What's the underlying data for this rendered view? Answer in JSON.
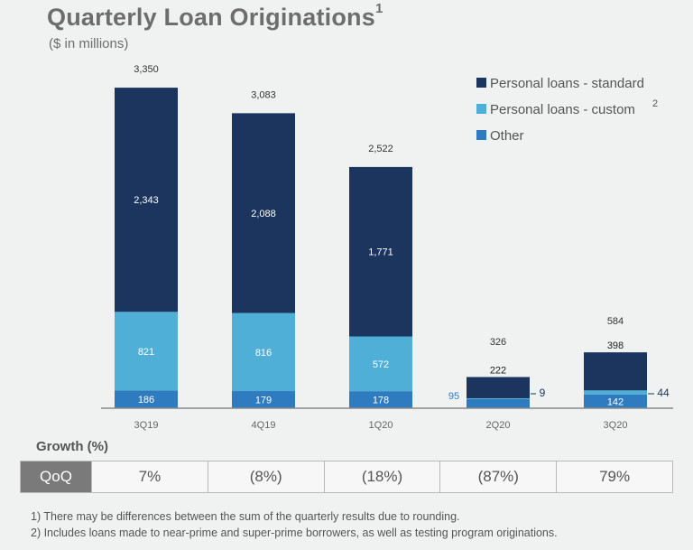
{
  "title": "Quarterly Loan Originations",
  "title_sup": "1",
  "subtitle": "($ in millions)",
  "chart_data": {
    "type": "bar",
    "stacked": true,
    "categories": [
      "3Q19",
      "4Q19",
      "1Q20",
      "2Q20",
      "3Q20"
    ],
    "series": [
      {
        "name": "Personal loans - standard",
        "values": [
          2343,
          2088,
          1771,
          222,
          398
        ],
        "color": "#1b355e"
      },
      {
        "name": "Personal loans - custom",
        "name_sup": "2",
        "values": [
          821,
          816,
          572,
          9,
          44
        ],
        "color": "#4fafd7"
      },
      {
        "name": "Other",
        "values": [
          186,
          179,
          178,
          95,
          142
        ],
        "color": "#2e7bbf"
      }
    ],
    "totals": [
      3350,
      3083,
      2522,
      326,
      584
    ],
    "value_labels": {
      "standard": [
        "2,343",
        "2,088",
        "1,771",
        "222",
        "398"
      ],
      "custom": [
        "821",
        "816",
        "572",
        "9",
        "44"
      ],
      "other": [
        "186",
        "179",
        "178",
        "95",
        "142"
      ],
      "totals": [
        "3,350",
        "3,083",
        "2,522",
        "326",
        "584"
      ]
    },
    "legend_position": "top-right",
    "ylim": [
      0,
      3700
    ],
    "grid": false
  },
  "growth": {
    "label": "Growth (%)",
    "row_label": "QoQ",
    "values": [
      "7%",
      "(8%)",
      "(18%)",
      "(87%)",
      "79%"
    ]
  },
  "footnotes": [
    "1)  There may be differences between the sum of the quarterly results due to rounding.",
    "2)  Includes loans made to near-prime and super-prime borrowers, as well as testing program originations."
  ]
}
